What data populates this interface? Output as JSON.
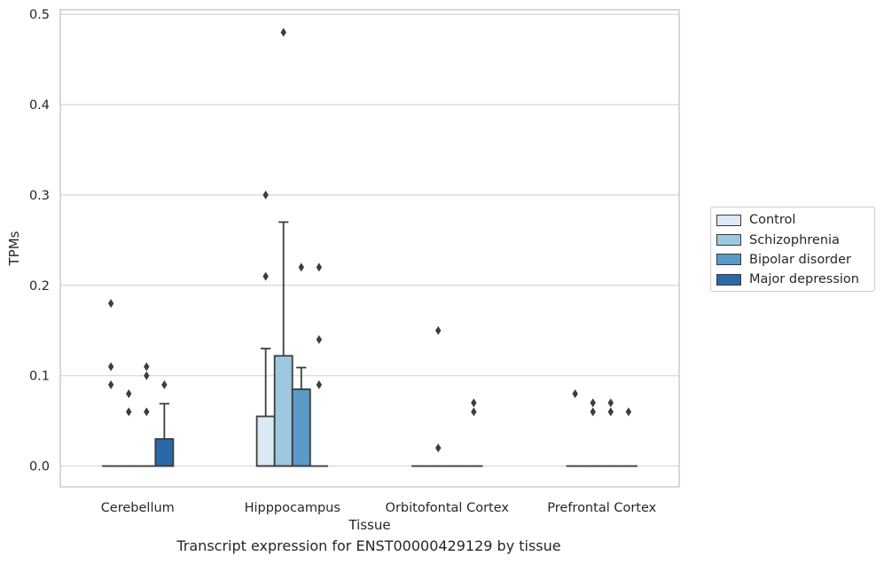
{
  "caption": "Transcript expression for ENST00000429129 by tissue",
  "chart_data": {
    "type": "box",
    "xlabel": "Tissue",
    "ylabel": "TPMs",
    "ylim": [
      -0.023,
      0.505
    ],
    "yticks": [
      "0.0",
      "0.1",
      "0.2",
      "0.3",
      "0.4",
      "0.5"
    ],
    "ytick_values": [
      0.0,
      0.1,
      0.2,
      0.3,
      0.4,
      0.5
    ],
    "grid": true,
    "legend_position": "right",
    "categories": [
      "Cerebellum",
      "Hipppocampus",
      "Orbitofontal Cortex",
      "Prefrontal Cortex"
    ],
    "series": [
      {
        "name": "Control",
        "color": "#dce8f4",
        "boxes": [
          {
            "q1": 0,
            "median": 0,
            "q3": 0,
            "whislo": 0,
            "whishi": 0,
            "fliers": [
              0.18,
              0.11,
              0.09
            ]
          },
          {
            "q1": 0,
            "median": 0,
            "q3": 0.055,
            "whislo": 0,
            "whishi": 0.13,
            "fliers": [
              0.3,
              0.21
            ]
          },
          {
            "q1": 0,
            "median": 0,
            "q3": 0,
            "whislo": 0,
            "whishi": 0,
            "fliers": []
          },
          {
            "q1": 0,
            "median": 0,
            "q3": 0,
            "whislo": 0,
            "whishi": 0,
            "fliers": [
              0.08
            ]
          }
        ]
      },
      {
        "name": "Schizophrenia",
        "color": "#9ec8e0",
        "boxes": [
          {
            "q1": 0,
            "median": 0,
            "q3": 0,
            "whislo": 0,
            "whishi": 0,
            "fliers": [
              0.08,
              0.06
            ]
          },
          {
            "q1": 0,
            "median": 0,
            "q3": 0.122,
            "whislo": 0,
            "whishi": 0.27,
            "fliers": [
              0.48
            ]
          },
          {
            "q1": 0,
            "median": 0,
            "q3": 0,
            "whislo": 0,
            "whishi": 0,
            "fliers": [
              0.15,
              0.02
            ]
          },
          {
            "q1": 0,
            "median": 0,
            "q3": 0,
            "whislo": 0,
            "whishi": 0,
            "fliers": [
              0.07,
              0.06
            ]
          }
        ]
      },
      {
        "name": "Bipolar disorder",
        "color": "#5a9ac8",
        "boxes": [
          {
            "q1": 0,
            "median": 0,
            "q3": 0,
            "whislo": 0,
            "whishi": 0,
            "fliers": [
              0.11,
              0.1,
              0.06
            ]
          },
          {
            "q1": 0,
            "median": 0,
            "q3": 0.085,
            "whislo": 0,
            "whishi": 0.109,
            "fliers": [
              0.22
            ]
          },
          {
            "q1": 0,
            "median": 0,
            "q3": 0,
            "whislo": 0,
            "whishi": 0,
            "fliers": []
          },
          {
            "q1": 0,
            "median": 0,
            "q3": 0,
            "whislo": 0,
            "whishi": 0,
            "fliers": [
              0.07,
              0.06
            ]
          }
        ]
      },
      {
        "name": "Major depression",
        "color": "#2b68a7",
        "boxes": [
          {
            "q1": 0,
            "median": 0,
            "q3": 0.03,
            "whislo": 0,
            "whishi": 0.069,
            "fliers": [
              0.09
            ]
          },
          {
            "q1": 0,
            "median": 0,
            "q3": 0,
            "whislo": 0,
            "whishi": 0,
            "fliers": [
              0.22,
              0.14,
              0.09
            ]
          },
          {
            "q1": 0,
            "median": 0,
            "q3": 0,
            "whislo": 0,
            "whishi": 0,
            "fliers": [
              0.07,
              0.06
            ]
          },
          {
            "q1": 0,
            "median": 0,
            "q3": 0,
            "whislo": 0,
            "whishi": 0,
            "fliers": [
              0.06
            ]
          }
        ]
      }
    ]
  }
}
